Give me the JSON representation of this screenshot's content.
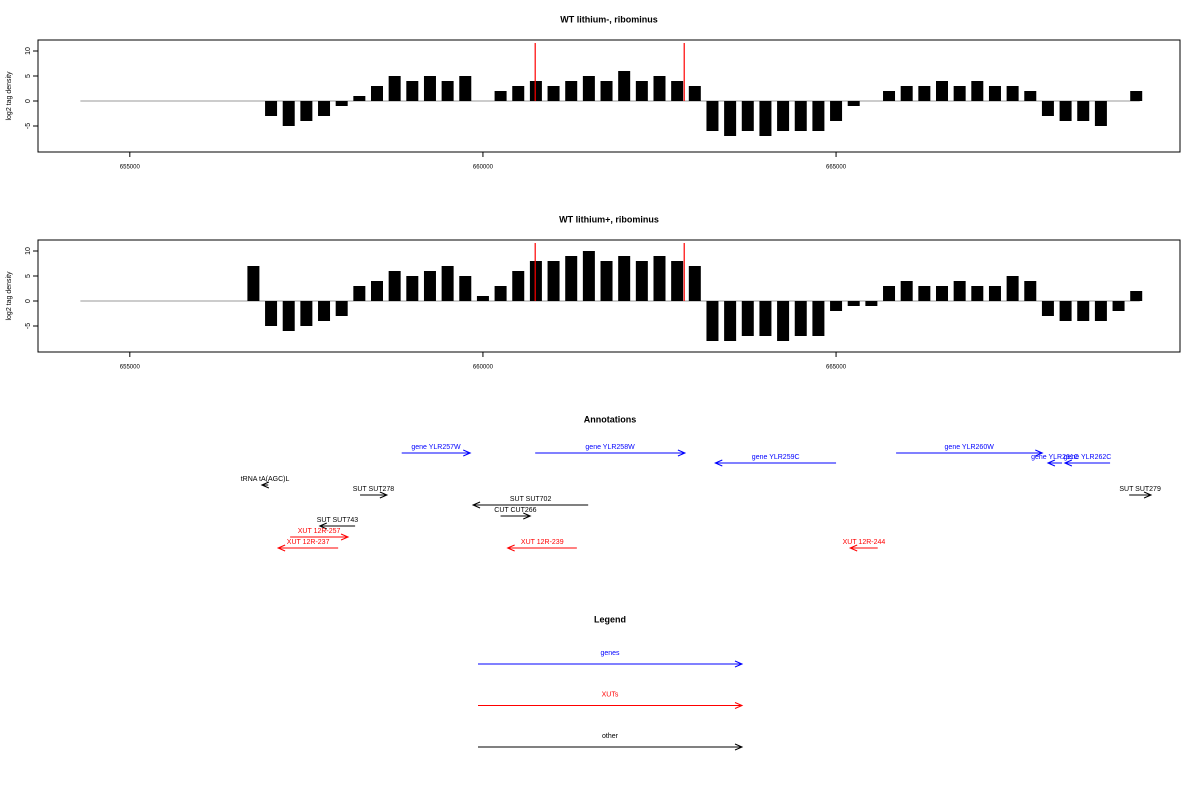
{
  "chart_data": [
    {
      "type": "bar",
      "title": "WT lithium-, ribominus",
      "y_label": "log2 tag density",
      "xlim": [
        653700,
        669870
      ],
      "ylim": [
        -10.2,
        12.2
      ],
      "xticks": [
        655000,
        660000,
        665000
      ],
      "yticks": [
        10,
        5,
        0,
        -5
      ],
      "region": [
        654300,
        669300
      ],
      "markers": [
        660740,
        662850
      ],
      "marker_color": "#ff0000",
      "color": "#000000",
      "x": [
        656750,
        657000,
        657250,
        657500,
        657750,
        658000,
        658250,
        658500,
        658750,
        659000,
        659250,
        659500,
        659750,
        660000,
        660250,
        660500,
        660750,
        661000,
        661250,
        661500,
        661750,
        662000,
        662250,
        662500,
        662750,
        663000,
        663250,
        663500,
        663750,
        664000,
        664250,
        664500,
        664750,
        665000,
        665250,
        665500,
        665750,
        666000,
        666250,
        666500,
        666750,
        667000,
        667250,
        667500,
        667750,
        668000,
        668250,
        668500,
        668750,
        669000,
        669250
      ],
      "values": [
        0,
        -3,
        -5,
        -4,
        -3,
        -1,
        1,
        3,
        5,
        4,
        5,
        4,
        5,
        0,
        2,
        3,
        4,
        3,
        4,
        5,
        4,
        6,
        4,
        5,
        4,
        3,
        -6,
        -7,
        -6,
        -7,
        -6,
        -6,
        -6,
        -4,
        -1,
        0,
        2,
        3,
        3,
        4,
        3,
        4,
        3,
        3,
        2,
        -3,
        -4,
        -4,
        -5,
        0,
        2
      ]
    },
    {
      "type": "bar",
      "title": "WT lithium+, ribominus",
      "y_label": "log2 tag density",
      "xlim": [
        653700,
        669870
      ],
      "ylim": [
        -10.2,
        12.2
      ],
      "xticks": [
        655000,
        660000,
        665000
      ],
      "yticks": [
        10,
        5,
        0,
        -5
      ],
      "region": [
        654300,
        669300
      ],
      "markers": [
        660740,
        662850
      ],
      "marker_color": "#ff0000",
      "color": "#000000",
      "x": [
        656750,
        657000,
        657250,
        657500,
        657750,
        658000,
        658250,
        658500,
        658750,
        659000,
        659250,
        659500,
        659750,
        660000,
        660250,
        660500,
        660750,
        661000,
        661250,
        661500,
        661750,
        662000,
        662250,
        662500,
        662750,
        663000,
        663250,
        663500,
        663750,
        664000,
        664250,
        664500,
        664750,
        665000,
        665250,
        665500,
        665750,
        666000,
        666250,
        666500,
        666750,
        667000,
        667250,
        667500,
        667750,
        668000,
        668250,
        668500,
        668750,
        669000,
        669250
      ],
      "values": [
        7,
        -5,
        -6,
        -5,
        -4,
        -3,
        3,
        4,
        6,
        5,
        6,
        7,
        5,
        1,
        3,
        6,
        8,
        8,
        9,
        10,
        8,
        9,
        8,
        9,
        8,
        7,
        -8,
        -8,
        -7,
        -7,
        -8,
        -7,
        -7,
        -2,
        -1,
        -1,
        3,
        4,
        3,
        3,
        4,
        3,
        3,
        5,
        4,
        -3,
        -4,
        -4,
        -4,
        -2,
        2
      ]
    }
  ],
  "annotations": {
    "title": "Annotations",
    "features": [
      {
        "label": "gene YLR257W",
        "start": 658850,
        "end": 659820,
        "color": "#0000ff"
      },
      {
        "label": "gene YLR258W",
        "start": 660740,
        "end": 662860,
        "color": "#0000ff"
      },
      {
        "label": "gene YLR259C",
        "start": 665000,
        "end": 663290,
        "color": "#0000ff"
      },
      {
        "label": "gene YLR260W",
        "start": 665850,
        "end": 667920,
        "color": "#0000ff"
      },
      {
        "label": "gene YLR261C",
        "start": 668200,
        "end": 668000,
        "color": "#0000ff"
      },
      {
        "label": "gene YLR262C",
        "start": 668880,
        "end": 668240,
        "color": "#0000ff"
      },
      {
        "label": "tRNA tA(AGC)L",
        "start": 656960,
        "end": 656870,
        "color": "#000000"
      },
      {
        "label": "SUT SUT278",
        "start": 658260,
        "end": 658640,
        "color": "#000000"
      },
      {
        "label": "SUT SUT702",
        "start": 661490,
        "end": 659860,
        "color": "#000000"
      },
      {
        "label": "CUT CUT266",
        "start": 660250,
        "end": 660670,
        "color": "#000000"
      },
      {
        "label": "SUT SUT743",
        "start": 658190,
        "end": 657690,
        "color": "#000000"
      },
      {
        "label": "SUT SUT279",
        "start": 669150,
        "end": 669460,
        "color": "#000000"
      },
      {
        "label": "XUT 12R-257",
        "start": 657270,
        "end": 658090,
        "color": "#ff0000"
      },
      {
        "label": "XUT 12R-237",
        "start": 657950,
        "end": 657100,
        "color": "#ff0000"
      },
      {
        "label": "XUT 12R-239",
        "start": 661330,
        "end": 660350,
        "color": "#ff0000"
      },
      {
        "label": "XUT 12R-244",
        "start": 665590,
        "end": 665200,
        "color": "#ff0000"
      }
    ]
  },
  "legend": {
    "title": "Legend",
    "items": [
      {
        "label": "genes",
        "color": "#0000ff"
      },
      {
        "label": "XUTs",
        "color": "#ff0000"
      },
      {
        "label": "other",
        "color": "#000000"
      }
    ]
  }
}
